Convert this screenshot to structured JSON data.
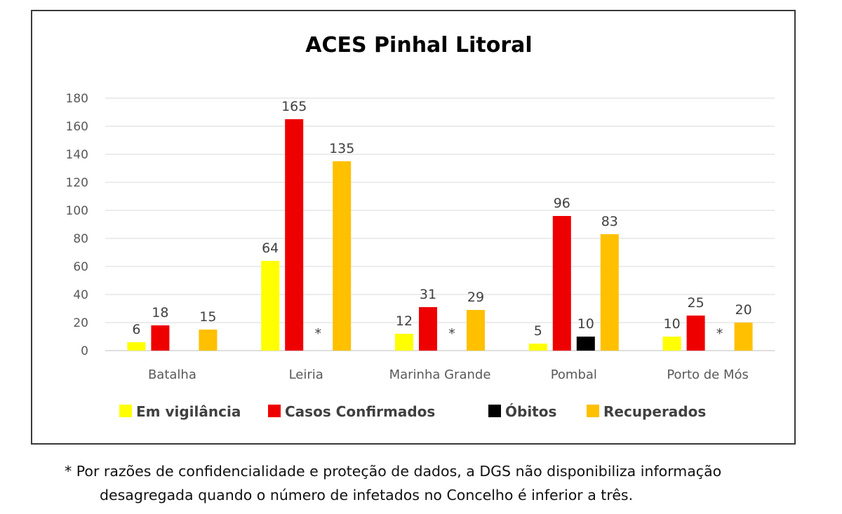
{
  "chart_data": {
    "type": "bar",
    "title": "ACES Pinhal Litoral",
    "categories": [
      "Batalha",
      "Leiria",
      "Marinha Grande",
      "Pombal",
      "Porto de Mós"
    ],
    "series": [
      {
        "name": "Em vigilância",
        "color": "#ffff00",
        "values": [
          6,
          64,
          12,
          5,
          10
        ]
      },
      {
        "name": "Casos Confirmados",
        "color": "#ee0000",
        "values": [
          18,
          165,
          31,
          96,
          25
        ]
      },
      {
        "name": "Óbitos",
        "color": "#000000",
        "values": [
          null,
          null,
          null,
          10,
          null
        ]
      },
      {
        "name": "Recuperados",
        "color": "#ffc000",
        "values": [
          15,
          135,
          29,
          83,
          20
        ]
      }
    ],
    "suppressed_marker": "*",
    "suppressed": [
      {
        "category": "Leiria",
        "series": "Óbitos"
      },
      {
        "category": "Marinha Grande",
        "series": "Óbitos"
      },
      {
        "category": "Porto de Mós",
        "series": "Óbitos"
      }
    ],
    "ylim": [
      0,
      180
    ],
    "yticks": [
      0,
      20,
      40,
      60,
      80,
      100,
      120,
      140,
      160,
      180
    ],
    "grid": true,
    "legend_position": "bottom"
  },
  "footnote": {
    "line1": "* Por razões de confidencialidade e proteção de dados, a DGS não disponibiliza informação",
    "line2": "desagregada quando o número de infetados no Concelho é inferior a três."
  }
}
